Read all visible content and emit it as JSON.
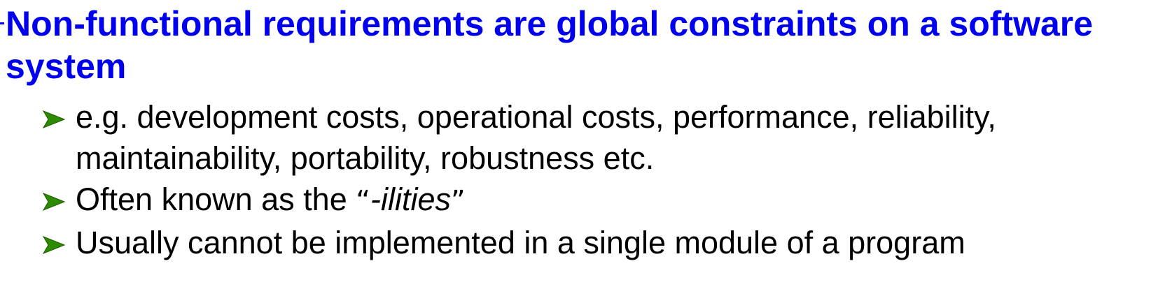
{
  "slide": {
    "heading": "Non-functional requirements are global constraints on a software system",
    "accent_color": "#0000ee",
    "bullet_color": "#2e8b00",
    "bullets": [
      {
        "icon": "arrow-bullet-icon",
        "text": "e.g. development costs, operational  costs, performance, reliability, maintainability, portability, robustness etc."
      },
      {
        "icon": "arrow-bullet-icon",
        "prefix": "Often known as the ",
        "open_quote": "“",
        "emphasis": "-ilities",
        "close_quote": "”"
      },
      {
        "icon": "arrow-bullet-icon",
        "text": "Usually cannot be implemented in a single module of a program"
      }
    ]
  }
}
